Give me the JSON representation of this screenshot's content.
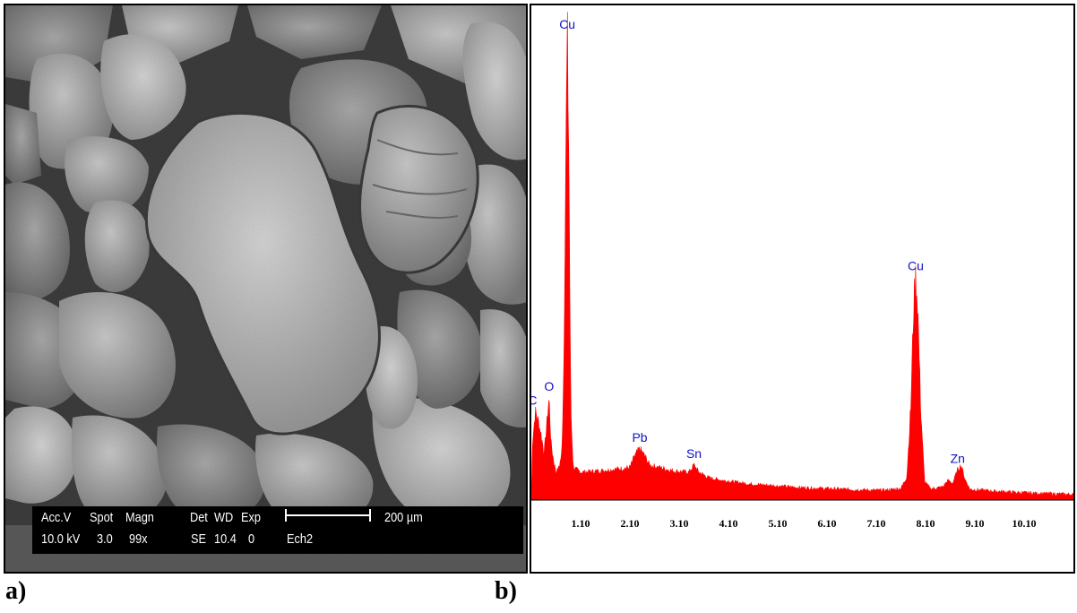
{
  "panel_a": {
    "label": "a)",
    "sem_info": {
      "row1": [
        "Acc.V",
        "Spot",
        "Magn",
        "Det",
        "WD",
        "Exp"
      ],
      "row2": [
        "10.0 kV",
        "3.0",
        "99x",
        "SE",
        "10.4",
        "0",
        "Ech2"
      ],
      "scale_label": "200 µm"
    }
  },
  "panel_b": {
    "label": "b)"
  },
  "chart_data": {
    "type": "line",
    "title": "",
    "xlabel": "",
    "ylabel": "",
    "xlim": [
      0.1,
      11.1
    ],
    "ylim": [
      0,
      100
    ],
    "fill": true,
    "series_color": "#ff0000",
    "x_ticks": [
      "1.10",
      "2.10",
      "3.10",
      "4.10",
      "5.10",
      "6.10",
      "7.10",
      "8.10",
      "9.10",
      "10.10"
    ],
    "x_tick_values": [
      1.1,
      2.1,
      3.1,
      4.1,
      5.1,
      6.1,
      7.1,
      8.1,
      9.1,
      10.1
    ],
    "series": [
      {
        "points": [
          [
            0.1,
            0
          ],
          [
            0.12,
            12
          ],
          [
            0.18,
            19
          ],
          [
            0.24,
            17
          ],
          [
            0.3,
            14
          ],
          [
            0.36,
            10
          ],
          [
            0.42,
            17
          ],
          [
            0.46,
            22
          ],
          [
            0.5,
            12
          ],
          [
            0.56,
            8
          ],
          [
            0.6,
            6
          ],
          [
            0.66,
            7
          ],
          [
            0.72,
            10
          ],
          [
            0.76,
            30
          ],
          [
            0.8,
            75
          ],
          [
            0.83,
            100
          ],
          [
            0.86,
            75
          ],
          [
            0.9,
            20
          ],
          [
            0.95,
            7
          ],
          [
            1.1,
            6
          ],
          [
            1.4,
            6.2
          ],
          [
            1.8,
            6.6
          ],
          [
            2.1,
            7
          ],
          [
            2.2,
            9.5
          ],
          [
            2.3,
            11
          ],
          [
            2.4,
            9.5
          ],
          [
            2.5,
            7.5
          ],
          [
            2.7,
            7
          ],
          [
            3.0,
            6.2
          ],
          [
            3.3,
            6
          ],
          [
            3.4,
            7.5
          ],
          [
            3.5,
            6
          ],
          [
            3.7,
            4.8
          ],
          [
            4.0,
            4.2
          ],
          [
            4.5,
            3.5
          ],
          [
            5.0,
            3.1
          ],
          [
            5.5,
            2.7
          ],
          [
            6.0,
            2.5
          ],
          [
            6.5,
            2.3
          ],
          [
            7.0,
            2.1
          ],
          [
            7.3,
            2.1
          ],
          [
            7.6,
            2.5
          ],
          [
            7.72,
            5
          ],
          [
            7.8,
            20
          ],
          [
            7.86,
            42
          ],
          [
            7.9,
            48
          ],
          [
            7.94,
            42
          ],
          [
            8.0,
            20
          ],
          [
            8.08,
            4
          ],
          [
            8.2,
            2.4
          ],
          [
            8.45,
            2.8
          ],
          [
            8.55,
            4.2
          ],
          [
            8.65,
            3.6
          ],
          [
            8.75,
            6.5
          ],
          [
            8.82,
            7.5
          ],
          [
            8.9,
            4.5
          ],
          [
            9.0,
            2.3
          ],
          [
            9.5,
            1.9
          ],
          [
            10.0,
            1.6
          ],
          [
            10.5,
            1.4
          ],
          [
            11.1,
            1.2
          ]
        ]
      }
    ],
    "peak_labels": [
      {
        "label": "C",
        "x": 0.18,
        "y": 19
      },
      {
        "label": "O",
        "x": 0.46,
        "y": 22
      },
      {
        "label": "Cu",
        "x": 0.83,
        "y": 100
      },
      {
        "label": "Pb",
        "x": 2.3,
        "y": 11
      },
      {
        "label": "Sn",
        "x": 3.4,
        "y": 7.5
      },
      {
        "label": "Cu",
        "x": 7.9,
        "y": 48
      },
      {
        "label": "Zn",
        "x": 8.75,
        "y": 6.5
      }
    ]
  }
}
